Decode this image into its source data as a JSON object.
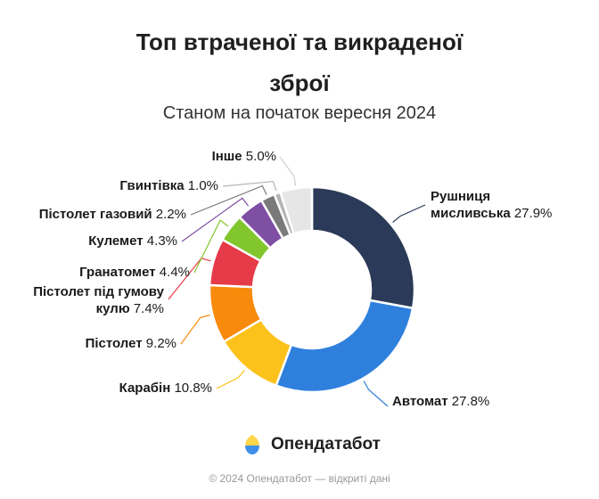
{
  "title_line1": "Топ втраченої та викраденої",
  "title_line2": "зброї",
  "subtitle": "Станом на початок вересня 2024",
  "brand": {
    "name": "Опендатабот"
  },
  "footer": "© 2024 Опендатабот — відкриті дані",
  "chart_data": {
    "type": "pie",
    "donut": true,
    "slices": [
      {
        "label": [
          "Рушниця",
          "мисливська"
        ],
        "value": 27.9,
        "display": "27.9%",
        "color": "#2b3a58"
      },
      {
        "label": [
          "Автомат"
        ],
        "value": 27.8,
        "display": "27.8%",
        "color": "#2f80dd"
      },
      {
        "label": [
          "Карабін"
        ],
        "value": 10.8,
        "display": "10.8%",
        "color": "#fcc21b"
      },
      {
        "label": [
          "Пістолет"
        ],
        "value": 9.2,
        "display": "9.2%",
        "color": "#f88a0c"
      },
      {
        "label": [
          "Пістолет під гумову",
          "кулю"
        ],
        "value": 7.4,
        "display": "7.4%",
        "color": "#e53a48"
      },
      {
        "label": [
          "Гранатомет"
        ],
        "value": 4.4,
        "display": "4.4%",
        "color": "#80c62c"
      },
      {
        "label": [
          "Кулемет"
        ],
        "value": 4.3,
        "display": "4.3%",
        "color": "#7e4fa3"
      },
      {
        "label": [
          "Пістолет газовий"
        ],
        "value": 2.2,
        "display": "2.2%",
        "color": "#7a7a7a"
      },
      {
        "label": [
          "Гвинтівка"
        ],
        "value": 1.0,
        "display": "1.0%",
        "color": "#b5b5b5"
      },
      {
        "label": [
          "Інше"
        ],
        "value": 5.0,
        "display": "5.0%",
        "color": "#e6e6e6"
      }
    ]
  }
}
